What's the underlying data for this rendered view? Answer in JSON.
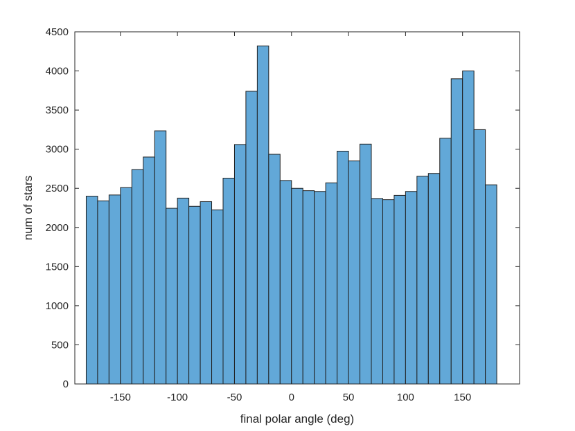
{
  "chart_data": {
    "type": "bar",
    "title": "",
    "xlabel": "final polar angle (deg)",
    "ylabel": "num of stars",
    "xlim": [
      -190,
      200
    ],
    "ylim": [
      0,
      4500
    ],
    "bin_width": 10,
    "bin_start": -180,
    "x_ticks": [
      -150,
      -100,
      -50,
      0,
      50,
      100,
      150
    ],
    "y_ticks": [
      0,
      500,
      1000,
      1500,
      2000,
      2500,
      3000,
      3500,
      4000,
      4500
    ],
    "values": [
      2400,
      2340,
      2415,
      2510,
      2740,
      2900,
      3235,
      2245,
      2375,
      2270,
      2330,
      2225,
      2630,
      3060,
      3740,
      4320,
      2935,
      2600,
      2500,
      2470,
      2460,
      2570,
      2975,
      2850,
      3065,
      2370,
      2355,
      2410,
      2460,
      2655,
      2690,
      3140,
      3900,
      4000,
      3250,
      2545
    ],
    "bar_color": "#62a8d8",
    "edge_color": "#1f1f1f",
    "grid": false
  }
}
